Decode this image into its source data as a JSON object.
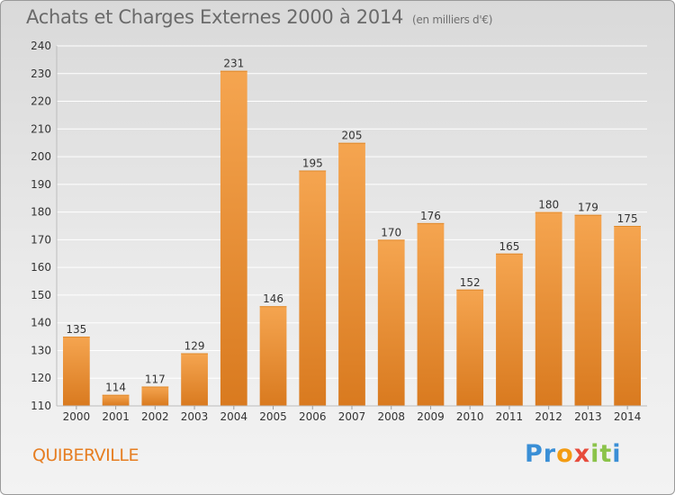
{
  "header": {
    "title": "Achats et Charges Externes 2000 à 2014",
    "subtitle": "(en milliers d'€)"
  },
  "commune": "QUIBERVILLE",
  "logo": {
    "text": "Proxiti",
    "letters": [
      {
        "ch": "P",
        "color": "#3a8fd6"
      },
      {
        "ch": "r",
        "color": "#3a8fd6"
      },
      {
        "ch": "o",
        "color": "#f39c12"
      },
      {
        "ch": "x",
        "color": "#e74c3c"
      },
      {
        "ch": "i",
        "color": "#8bc34a"
      },
      {
        "ch": "t",
        "color": "#8bc34a"
      },
      {
        "ch": "i",
        "color": "#3a8fd6"
      }
    ]
  },
  "colors": {
    "bar_light": "#f5a550",
    "bar_dark": "#d97a1f",
    "grid": "#ffffff",
    "axis_text": "#333333"
  },
  "chart_data": {
    "type": "bar",
    "title": "Achats et Charges Externes 2000 à 2014",
    "categories": [
      "2000",
      "2001",
      "2002",
      "2003",
      "2004",
      "2005",
      "2006",
      "2007",
      "2008",
      "2009",
      "2010",
      "2011",
      "2012",
      "2013",
      "2014"
    ],
    "values": [
      135,
      114,
      117,
      129,
      231,
      146,
      195,
      205,
      170,
      176,
      152,
      165,
      180,
      179,
      175
    ],
    "ylim": [
      110,
      240
    ],
    "yticks": [
      110,
      120,
      130,
      140,
      150,
      160,
      170,
      180,
      190,
      200,
      210,
      220,
      230,
      240
    ],
    "grid": true,
    "data_labels": true
  }
}
